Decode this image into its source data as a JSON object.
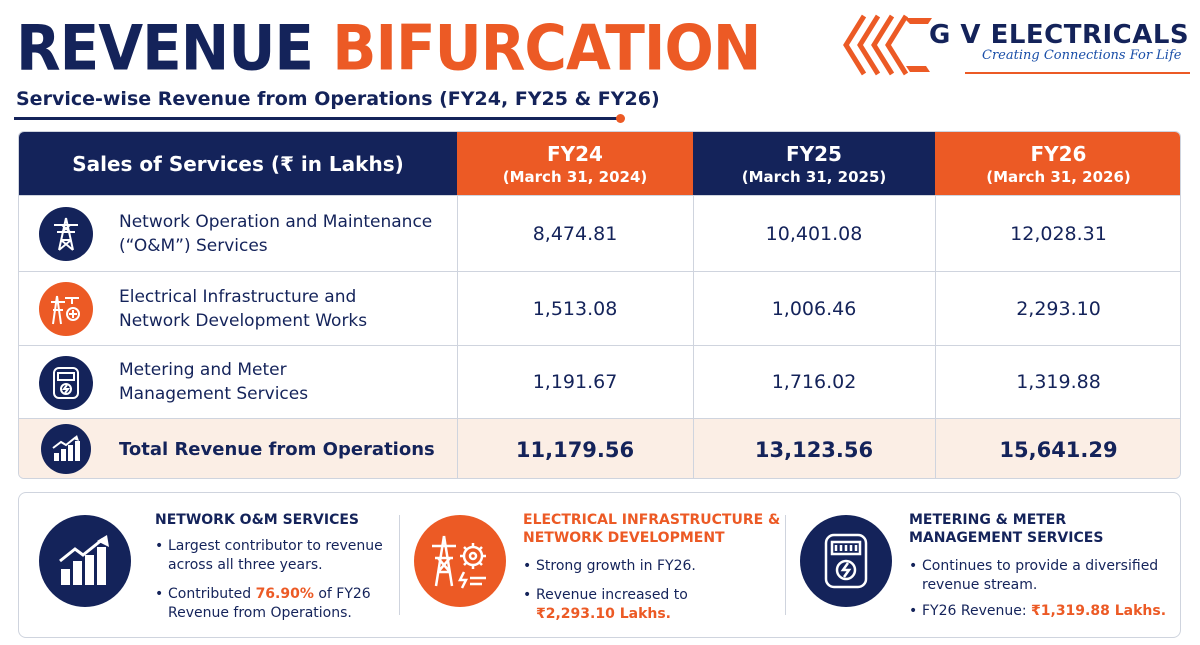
{
  "header": {
    "title_word1": "REVENUE",
    "title_word2": "BIFURCATION",
    "subtitle": "Service-wise Revenue from Operations (FY24, FY25 & FY26)"
  },
  "logo": {
    "company": "G V ELECTRICALS LTD",
    "tagline": "Creating Connections For Life"
  },
  "table": {
    "header_label": "Sales of Services (₹ in Lakhs)",
    "columns": [
      {
        "fy": "FY24",
        "date": "(March 31, 2024)"
      },
      {
        "fy": "FY25",
        "date": "(March 31, 2025)"
      },
      {
        "fy": "FY26",
        "date": "(March 31, 2026)"
      }
    ],
    "rows": [
      {
        "label_line1": "Network Operation and Maintenance",
        "label_line2": "(“O&M”) Services",
        "icon": "transmission-tower-icon",
        "values": [
          "8,474.81",
          "10,401.08",
          "12,028.31"
        ]
      },
      {
        "label_line1": "Electrical Infrastructure and",
        "label_line2": "Network Development Works",
        "icon": "infrastructure-icon",
        "values": [
          "1,513.08",
          "1,006.46",
          "2,293.10"
        ]
      },
      {
        "label_line1": "Metering and Meter",
        "label_line2": "Management Services",
        "icon": "meter-icon",
        "values": [
          "1,191.67",
          "1,716.02",
          "1,319.88"
        ]
      }
    ],
    "total": {
      "label": "Total Revenue from Operations",
      "icon": "growth-chart-icon",
      "values": [
        "11,179.56",
        "13,123.56",
        "15,641.29"
      ]
    }
  },
  "cards": [
    {
      "title": "NETWORK O&M SERVICES",
      "icon": "growth-chart-icon",
      "b1": "Largest contributor to revenue across all three years.",
      "b2_pre": "Contributed ",
      "b2_hl": "76.90%",
      "b2_post": " of FY26 Revenue from Operations."
    },
    {
      "title": "ELECTRICAL INFRASTRUCTURE &\nNETWORK DEVELOPMENT",
      "icon": "infrastructure-gear-icon",
      "b1": "Strong growth in FY26.",
      "b2_pre": "Revenue increased to",
      "b2_hl": "₹2,293.10 Lakhs."
    },
    {
      "title": "METERING & METER\nMANAGEMENT SERVICES",
      "icon": "meter-icon",
      "b1": "Continues to provide a diversified revenue stream.",
      "b2_pre": "FY26 Revenue: ",
      "b2_hl": "₹1,319.88 Lakhs."
    }
  ],
  "colors": {
    "navy": "#14235a",
    "orange": "#ec5a25"
  }
}
